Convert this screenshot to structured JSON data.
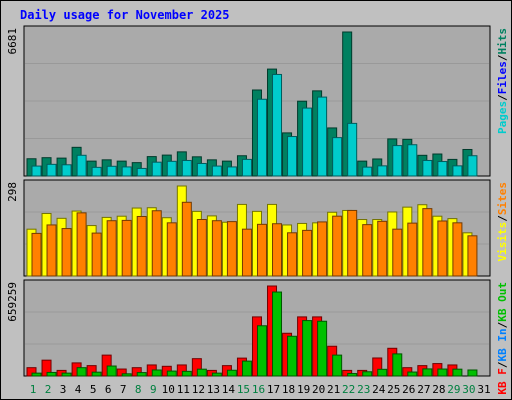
{
  "title": "Daily usage for November 2025",
  "colors": {
    "background": "#c0c0c0",
    "plot_bg": "#aaaaaa",
    "gridline": "#999999",
    "title": "#0000ff",
    "pages": "#00cccc",
    "files": "#0000ff",
    "hits": "#008060",
    "visits": "#ffff00",
    "sites": "#ff8000",
    "kb_in": "#0080ff",
    "kb_out": "#00c000",
    "kb_f": "#ff0000",
    "weekend_label": "#008040"
  },
  "chart_data": [
    {
      "type": "bar",
      "panel": "hits-files-pages",
      "ymax_label": "6681",
      "ylim": [
        0,
        6681
      ],
      "grid": true,
      "legend": [
        {
          "text": "Pages",
          "color": "#00cccc"
        },
        {
          "text": "/",
          "color": "#000000"
        },
        {
          "text": "Files",
          "color": "#0000ff"
        },
        {
          "text": "/",
          "color": "#000000"
        },
        {
          "text": "Hits",
          "color": "#008060"
        }
      ],
      "categories": [
        "1",
        "2",
        "3",
        "4",
        "5",
        "6",
        "7",
        "8",
        "9",
        "10",
        "11",
        "12",
        "13",
        "14",
        "15",
        "16",
        "17",
        "18",
        "19",
        "20",
        "21",
        "22",
        "23",
        "24",
        "25",
        "26",
        "27",
        "28",
        "29",
        "30",
        "31"
      ],
      "series": [
        {
          "name": "Hits",
          "color": "#008060",
          "values": [
            800,
            850,
            830,
            1330,
            690,
            750,
            690,
            620,
            900,
            970,
            1120,
            890,
            750,
            690,
            940,
            3990,
            4960,
            2000,
            3470,
            3950,
            2230,
            6681,
            690,
            790,
            1720,
            1700,
            960,
            1020,
            770,
            1230,
            0
          ]
        },
        {
          "name": "Files",
          "color": "#00cccc",
          "values": [
            600,
            680,
            660,
            1100,
            540,
            590,
            560,
            490,
            780,
            820,
            860,
            720,
            600,
            560,
            910,
            3700,
            4850,
            1970,
            3290,
            3800,
            1920,
            2580,
            550,
            610,
            1550,
            1590,
            860,
            810,
            610,
            1080,
            0
          ]
        }
      ]
    },
    {
      "type": "bar",
      "panel": "visits-sites",
      "ymax_label": "298",
      "ylim": [
        0,
        298
      ],
      "grid": true,
      "legend": [
        {
          "text": "Visits",
          "color": "#ffff00"
        },
        {
          "text": "/",
          "color": "#000000"
        },
        {
          "text": "Sites",
          "color": "#ff8000"
        }
      ],
      "categories": [
        "1",
        "2",
        "3",
        "4",
        "5",
        "6",
        "7",
        "8",
        "9",
        "10",
        "11",
        "12",
        "13",
        "14",
        "15",
        "16",
        "17",
        "18",
        "19",
        "20",
        "21",
        "22",
        "23",
        "24",
        "25",
        "26",
        "27",
        "28",
        "29",
        "30",
        "31"
      ],
      "series": [
        {
          "name": "Visits",
          "color": "#ffff00",
          "values": [
            155,
            207,
            191,
            215,
            167,
            194,
            198,
            225,
            226,
            193,
            298,
            214,
            199,
            178,
            237,
            214,
            237,
            169,
            174,
            176,
            211,
            217,
            187,
            187,
            212,
            228,
            236,
            198,
            190,
            143,
            0
          ]
        },
        {
          "name": "Sites",
          "color": "#ff8000",
          "values": [
            151,
            179,
            167,
            219,
            152,
            193,
            194,
            207,
            226,
            186,
            254,
            197,
            193,
            190,
            165,
            181,
            183,
            153,
            161,
            189,
            208,
            227,
            180,
            191,
            165,
            185,
            233,
            192,
            186,
            143,
            0
          ]
        }
      ]
    },
    {
      "type": "bar",
      "panel": "kbf-kbin-kbout",
      "ymax_label": "659259",
      "ylim": [
        0,
        659259
      ],
      "grid": true,
      "legend": [
        {
          "text": "KB F",
          "color": "#ff0000"
        },
        {
          "text": "/",
          "color": "#000000"
        },
        {
          "text": "KB In",
          "color": "#0080ff"
        },
        {
          "text": "/",
          "color": "#000000"
        },
        {
          "text": "KB Out",
          "color": "#00c000"
        }
      ],
      "categories": [
        "1",
        "2",
        "3",
        "4",
        "5",
        "6",
        "7",
        "8",
        "9",
        "10",
        "11",
        "12",
        "13",
        "14",
        "15",
        "16",
        "17",
        "18",
        "19",
        "20",
        "21",
        "22",
        "23",
        "24",
        "25",
        "26",
        "27",
        "28",
        "29",
        "30",
        "31"
      ],
      "series": [
        {
          "name": "KB F",
          "color": "#ff0000",
          "values": [
            61000,
            116000,
            41000,
            96000,
            76000,
            153000,
            51000,
            61000,
            81000,
            71000,
            81000,
            127000,
            41000,
            76000,
            131000,
            433000,
            659259,
            313000,
            433000,
            433000,
            218000,
            41000,
            41000,
            132000,
            203000,
            61000,
            76000,
            91000,
            81000,
            0,
            0
          ]
        },
        {
          "name": "KB Out",
          "color": "#00c000",
          "values": [
            43000,
            48000,
            43000,
            83000,
            50000,
            95000,
            38000,
            47000,
            66000,
            58000,
            56000,
            72000,
            43000,
            64000,
            131000,
            390000,
            637000,
            313000,
            428000,
            423000,
            175000,
            40000,
            53000,
            71000,
            184000,
            51000,
            74000,
            73000,
            72000,
            66000,
            0
          ]
        }
      ]
    }
  ],
  "x_axis": {
    "labels": [
      "1",
      "2",
      "3",
      "4",
      "5",
      "6",
      "7",
      "8",
      "9",
      "10",
      "11",
      "12",
      "13",
      "14",
      "15",
      "16",
      "17",
      "18",
      "19",
      "20",
      "21",
      "22",
      "23",
      "24",
      "25",
      "26",
      "27",
      "28",
      "29",
      "30",
      "31"
    ],
    "weekend_days": [
      "1",
      "2",
      "8",
      "9",
      "15",
      "16",
      "22",
      "23",
      "29",
      "30"
    ]
  }
}
